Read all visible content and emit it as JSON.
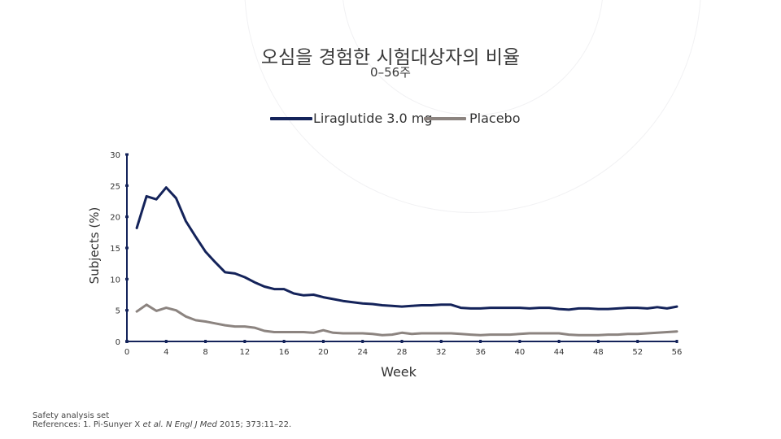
{
  "title": "오심을 경험한 시험대상자의 비율",
  "subtitle": "0–56주",
  "footnote": {
    "line1": "Safety analysis set",
    "line2_prefix": "References: 1. Pi-Sunyer X ",
    "line2_etal": "et al. N Engl J Med",
    "line2_suffix": " 2015; 373:11–22."
  },
  "colors": {
    "liraglutide": "#14235a",
    "placebo": "#8c8480",
    "axis": "#14235a"
  },
  "chart_data": {
    "type": "line",
    "xlabel": "Week",
    "ylabel": "Subjects (%)",
    "xlim": [
      0,
      56
    ],
    "ylim": [
      0,
      30
    ],
    "xticks": [
      0,
      4,
      8,
      12,
      16,
      20,
      24,
      28,
      32,
      36,
      40,
      44,
      48,
      52,
      56
    ],
    "yticks": [
      0,
      5,
      10,
      15,
      20,
      25,
      30
    ],
    "legend_position": "top-center",
    "grid": false,
    "series": [
      {
        "name": "Liraglutide 3.0 mg",
        "x": [
          1,
          2,
          3,
          4,
          5,
          6,
          7,
          8,
          9,
          10,
          11,
          12,
          13,
          14,
          15,
          16,
          17,
          18,
          19,
          20,
          21,
          22,
          23,
          24,
          25,
          26,
          27,
          28,
          29,
          30,
          31,
          32,
          33,
          34,
          35,
          36,
          37,
          38,
          39,
          40,
          41,
          42,
          43,
          44,
          45,
          46,
          47,
          48,
          49,
          50,
          51,
          52,
          53,
          54,
          55,
          56
        ],
        "y": [
          18.2,
          23.3,
          22.8,
          24.7,
          23.0,
          19.3,
          16.8,
          14.4,
          12.7,
          11.1,
          10.9,
          10.3,
          9.5,
          8.8,
          8.4,
          8.4,
          7.7,
          7.4,
          7.5,
          7.1,
          6.8,
          6.5,
          6.3,
          6.1,
          6.0,
          5.8,
          5.7,
          5.6,
          5.7,
          5.8,
          5.8,
          5.9,
          5.9,
          5.4,
          5.3,
          5.3,
          5.4,
          5.4,
          5.4,
          5.4,
          5.3,
          5.4,
          5.4,
          5.2,
          5.1,
          5.3,
          5.3,
          5.2,
          5.2,
          5.3,
          5.4,
          5.4,
          5.3,
          5.5,
          5.3,
          5.6
        ]
      },
      {
        "name": "Placebo",
        "x": [
          1,
          2,
          3,
          4,
          5,
          6,
          7,
          8,
          9,
          10,
          11,
          12,
          13,
          14,
          15,
          16,
          17,
          18,
          19,
          20,
          21,
          22,
          23,
          24,
          25,
          26,
          27,
          28,
          29,
          30,
          31,
          32,
          33,
          34,
          35,
          36,
          37,
          38,
          39,
          40,
          41,
          42,
          43,
          44,
          45,
          46,
          47,
          48,
          49,
          50,
          51,
          52,
          53,
          54,
          55,
          56
        ],
        "y": [
          4.8,
          5.9,
          4.9,
          5.4,
          5.0,
          4.0,
          3.4,
          3.2,
          2.9,
          2.6,
          2.4,
          2.4,
          2.2,
          1.7,
          1.5,
          1.5,
          1.5,
          1.5,
          1.4,
          1.8,
          1.4,
          1.3,
          1.3,
          1.3,
          1.2,
          1.0,
          1.1,
          1.4,
          1.2,
          1.3,
          1.3,
          1.3,
          1.3,
          1.2,
          1.1,
          1.0,
          1.1,
          1.1,
          1.1,
          1.2,
          1.3,
          1.3,
          1.3,
          1.3,
          1.1,
          1.0,
          1.0,
          1.0,
          1.1,
          1.1,
          1.2,
          1.2,
          1.3,
          1.4,
          1.5,
          1.6
        ]
      }
    ]
  }
}
